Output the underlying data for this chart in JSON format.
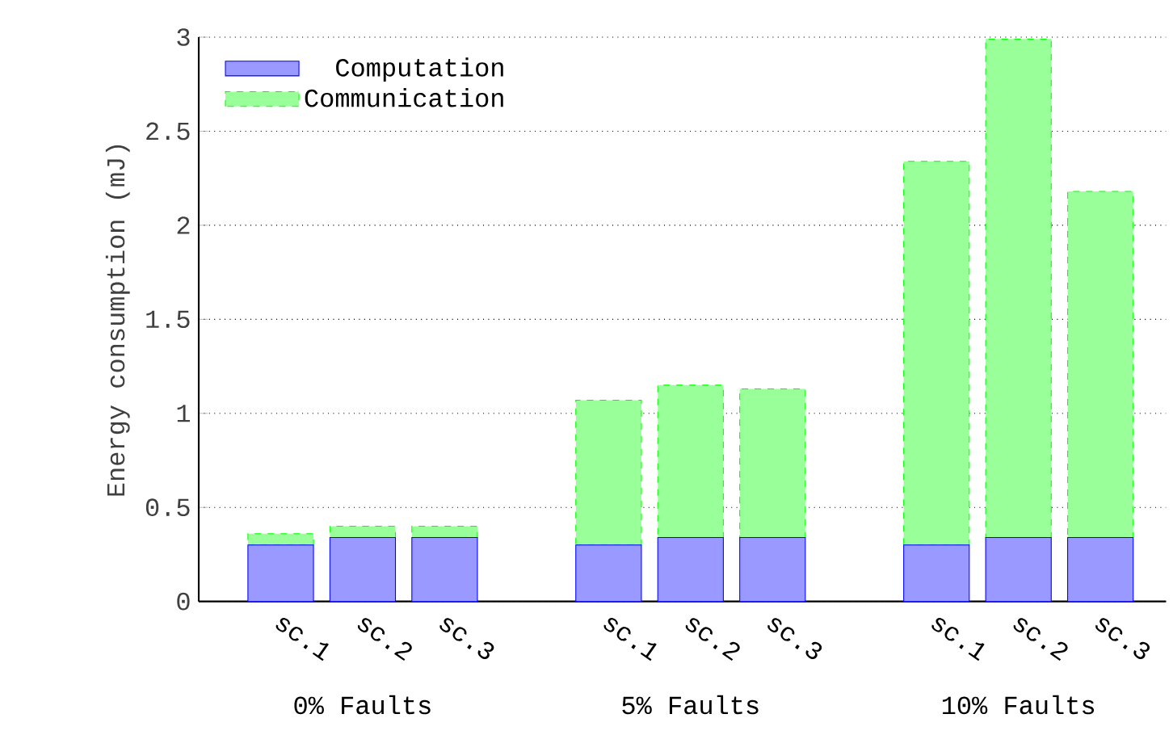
{
  "chart_data": {
    "type": "bar",
    "stacked": true,
    "ylabel": "Energy consumption (mJ)",
    "categories": [
      "sc.1",
      "sc.2",
      "sc.3",
      null,
      "sc.1",
      "sc.2",
      "sc.3",
      null,
      "sc.1",
      "sc.2",
      "sc.3"
    ],
    "series": [
      {
        "name": "Computation",
        "color": "#9999ff",
        "values": [
          0.3,
          0.34,
          0.34,
          null,
          0.3,
          0.34,
          0.34,
          null,
          0.3,
          0.34,
          0.34
        ]
      },
      {
        "name": "Communication",
        "color": "#99ff99",
        "line_style": "dashed",
        "values": [
          0.06,
          0.06,
          0.06,
          null,
          0.77,
          0.81,
          0.79,
          null,
          2.04,
          2.65,
          1.84
        ]
      }
    ],
    "annotations": [
      "0% Faults",
      "5% Faults",
      "10% Faults"
    ],
    "ylim": [
      0,
      3
    ],
    "yticks": [
      0,
      0.5,
      1,
      1.5,
      2,
      2.5,
      3
    ],
    "grid": "y",
    "legend": "top left"
  }
}
